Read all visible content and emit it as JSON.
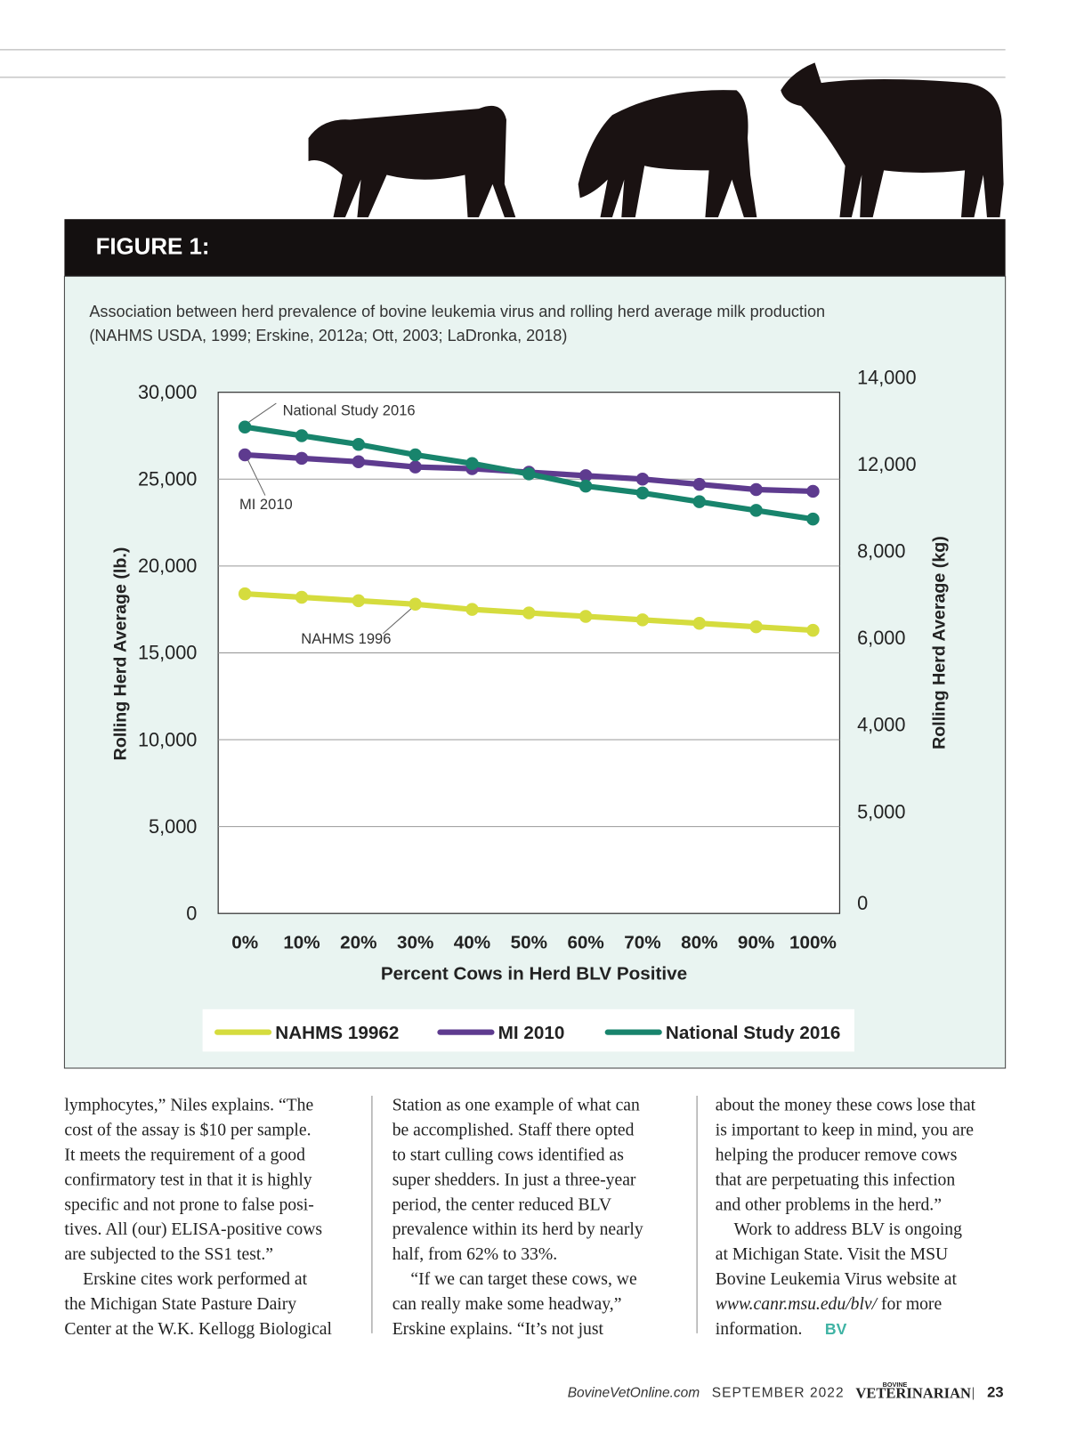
{
  "figure_label": "FIGURE 1:",
  "caption": [
    "Association between herd prevalence of bovine leukemia virus and rolling herd average milk production",
    "(NAHMS USDA, 1999; Erskine, 2012a; Ott, 2003; LaDronka, 2018)"
  ],
  "chart_data": {
    "type": "line",
    "x_label": "Percent Cows in Herd BLV Positive",
    "y_label": "Rolling Herd Average (lb.)",
    "y2_label": "Rolling Herd Average (kg)",
    "categories": [
      "0%",
      "10%",
      "20%",
      "30%",
      "40%",
      "50%",
      "60%",
      "70%",
      "80%",
      "90%",
      "100%"
    ],
    "series": [
      {
        "name": "NAHMS 19962",
        "color": "#d5dc3e",
        "values": [
          18400,
          18200,
          18000,
          17800,
          17500,
          17300,
          17100,
          16900,
          16700,
          16500,
          16300
        ]
      },
      {
        "name": "MI 2010",
        "color": "#5e3b8f",
        "values": [
          26400,
          26200,
          26000,
          25700,
          25600,
          25400,
          25200,
          25000,
          24700,
          24400,
          24300
        ]
      },
      {
        "name": "National Study 2016",
        "color": "#18846c",
        "values": [
          28000,
          27500,
          27000,
          26400,
          25900,
          25300,
          24600,
          24200,
          23700,
          23200,
          22700
        ]
      }
    ],
    "annotations": [
      "National Study 2016",
      "MI 2010",
      "NAHMS 1996"
    ],
    "ylim": [
      0,
      30000
    ],
    "yticks": [
      0,
      {
        "value": 5000,
        "label": "5,000"
      },
      {
        "value": 10000,
        "label": "10,000"
      },
      {
        "value": 15000,
        "label": "15,000"
      },
      {
        "value": 20000,
        "label": "20,000"
      },
      {
        "value": 25000,
        "label": "25,000"
      },
      {
        "value": 30000,
        "label": "30,000"
      }
    ],
    "y2ticks": [
      0,
      {
        "value": 5000,
        "label": "5,000"
      },
      {
        "value": 4000,
        "label": "4,000"
      },
      {
        "value": 6000,
        "label": "6,000"
      },
      {
        "value": 8000,
        "label": "8,000"
      },
      {
        "value": 12000,
        "label": "12,000"
      },
      {
        "value": 14000,
        "label": "14,000"
      }
    ],
    "grid": true
  },
  "columns": [
    [
      "lymphocytes,” Niles explains. “The",
      "cost of the assay is $10 per sample.",
      "It meets the requirement of a good",
      "confirmatory test in that it is highly",
      "specific and not prone to false posi-",
      "tives. All (our) ELISA-positive cows",
      "are subjected to the SS1 test.”",
      "Erskine cites work performed at",
      "the Michigan State Pasture Dairy",
      "Center at the W.K. Kellogg Biological"
    ],
    [
      "Station as one example of what can",
      "be accomplished. Staff there opted",
      "to start culling cows identified as",
      "super shedders. In just a three-year",
      "period, the center reduced BLV",
      "prevalence within its herd by nearly",
      "half, from 62% to 33%.",
      "“If we can target these cows, we",
      "can really make some headway,”",
      "Erskine explains. “It’s not just"
    ],
    [
      "about the money these cows lose that",
      "is important to keep in mind, you are",
      "helping the producer remove cows",
      "that are perpetuating this infection",
      "and other problems in the herd.”",
      "Work to address BLV is ongoing",
      "at Michigan State. Visit the MSU",
      "Bovine Leukemia Virus website at"
    ]
  ],
  "url_line": {
    "url": "www.canr.msu.edu/blv/",
    "rest": " for more"
  },
  "last_line": {
    "text": "information.",
    "mark": "BV"
  },
  "footer": {
    "site": "BovineVetOnline.com",
    "date": "SEPTEMBER 2022",
    "logo_small": "BOVINE",
    "logo": "VETERINARIAN",
    "sep": "|",
    "page": "23"
  }
}
